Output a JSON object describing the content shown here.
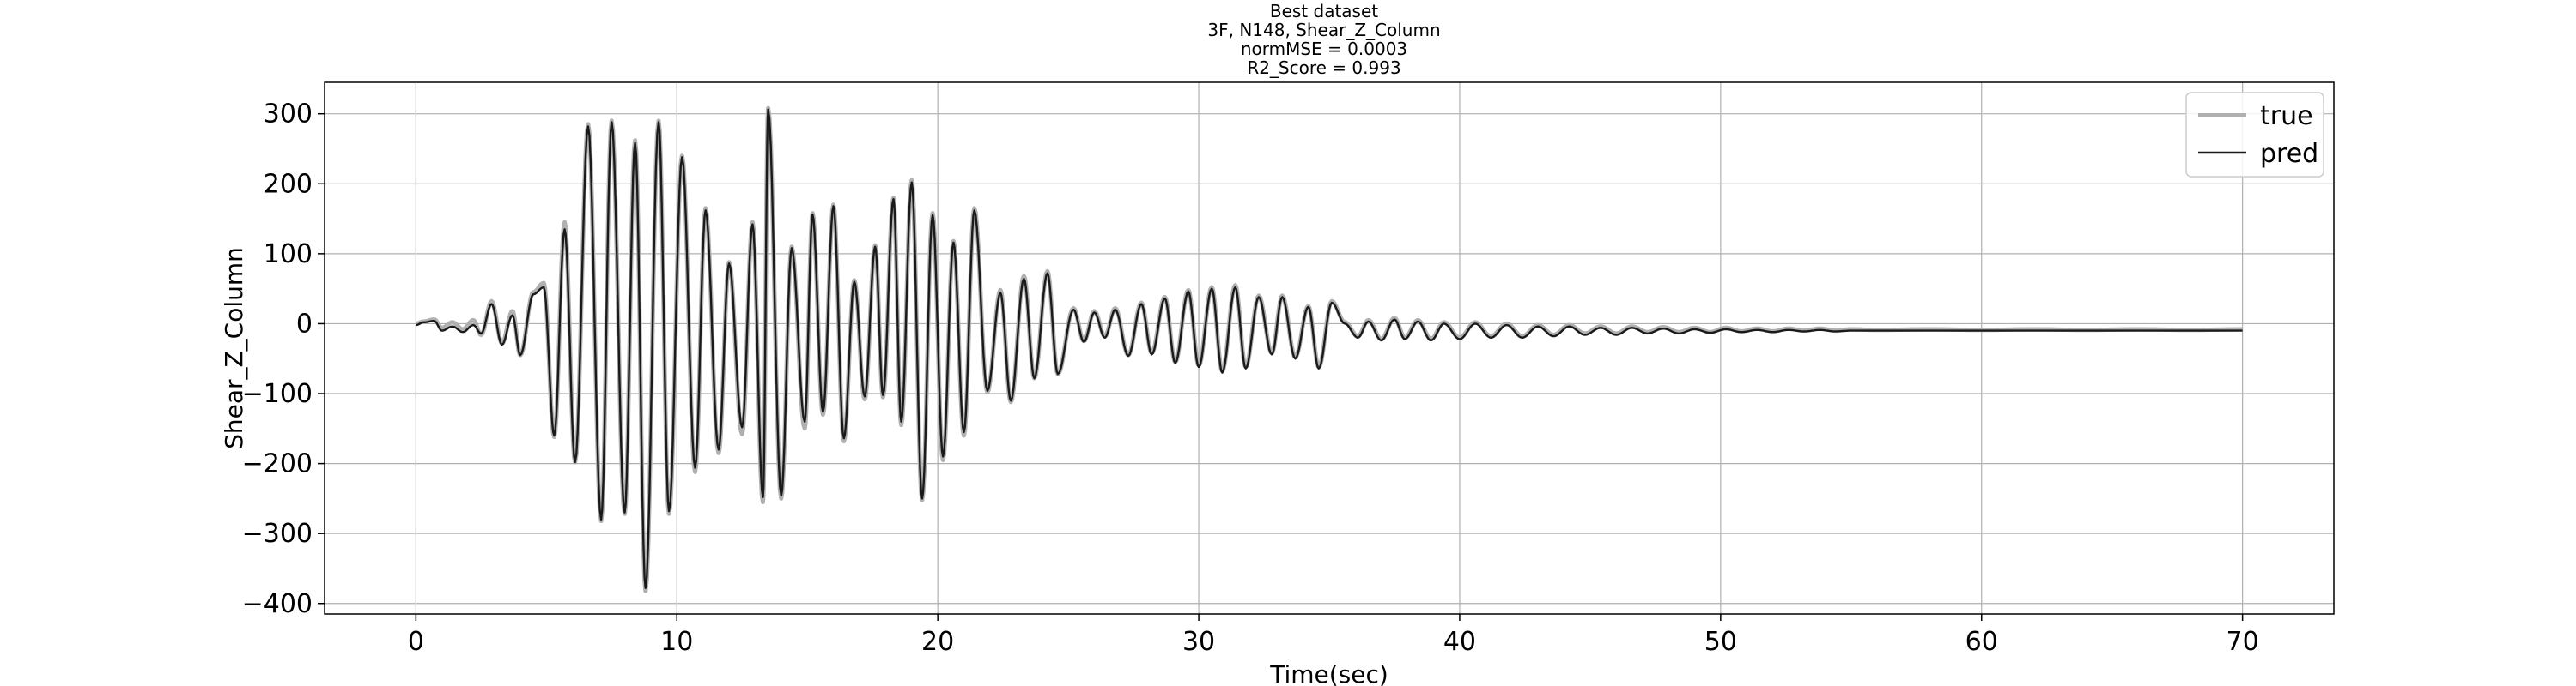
{
  "chart_data": {
    "type": "line",
    "title_lines": [
      "Best dataset",
      "3F, N148, Shear_Z_Column",
      "normMSE = 0.0003",
      "R2_Score = 0.993"
    ],
    "xlabel": "Time(sec)",
    "ylabel": "Shear_Z_Column",
    "xlim": [
      -3.5,
      73.5
    ],
    "ylim": [
      -415,
      345
    ],
    "xticks": [
      0,
      10,
      20,
      30,
      40,
      50,
      60,
      70
    ],
    "yticks": [
      -400,
      -300,
      -200,
      -100,
      0,
      100,
      200,
      300
    ],
    "ytick_labels": [
      "−400",
      "−300",
      "−200",
      "−100",
      "0",
      "100",
      "200",
      "300"
    ],
    "grid": true,
    "legend_position": "top-right",
    "series": [
      {
        "name": "true",
        "color": "#b0b0b0",
        "peaks": [
          [
            0,
            0
          ],
          [
            0.3,
            3
          ],
          [
            0.7,
            6
          ],
          [
            1.0,
            -6
          ],
          [
            1.4,
            2
          ],
          [
            1.8,
            -8
          ],
          [
            2.2,
            5
          ],
          [
            2.5,
            -16
          ],
          [
            2.9,
            32
          ],
          [
            3.3,
            -28
          ],
          [
            3.7,
            18
          ],
          [
            4.0,
            -45
          ],
          [
            4.5,
            45
          ],
          [
            4.9,
            58
          ],
          [
            5.3,
            -162
          ],
          [
            5.7,
            145
          ],
          [
            6.1,
            -198
          ],
          [
            6.6,
            285
          ],
          [
            7.1,
            -282
          ],
          [
            7.5,
            290
          ],
          [
            8.0,
            -272
          ],
          [
            8.4,
            262
          ],
          [
            8.8,
            -382
          ],
          [
            9.3,
            290
          ],
          [
            9.7,
            -272
          ],
          [
            10.2,
            240
          ],
          [
            10.7,
            -212
          ],
          [
            11.1,
            165
          ],
          [
            11.6,
            -185
          ],
          [
            12.0,
            88
          ],
          [
            12.5,
            -158
          ],
          [
            12.9,
            145
          ],
          [
            13.3,
            -255
          ],
          [
            13.5,
            308
          ],
          [
            14.0,
            -250
          ],
          [
            14.4,
            110
          ],
          [
            14.9,
            -150
          ],
          [
            15.2,
            158
          ],
          [
            15.6,
            -130
          ],
          [
            16.0,
            170
          ],
          [
            16.4,
            -168
          ],
          [
            16.8,
            62
          ],
          [
            17.2,
            -108
          ],
          [
            17.6,
            112
          ],
          [
            17.9,
            -105
          ],
          [
            18.3,
            180
          ],
          [
            18.6,
            -145
          ],
          [
            19.0,
            205
          ],
          [
            19.4,
            -252
          ],
          [
            19.8,
            158
          ],
          [
            20.2,
            -195
          ],
          [
            20.6,
            118
          ],
          [
            21.0,
            -160
          ],
          [
            21.4,
            165
          ],
          [
            21.9,
            -98
          ],
          [
            22.4,
            48
          ],
          [
            22.8,
            -112
          ],
          [
            23.3,
            68
          ],
          [
            23.7,
            -78
          ],
          [
            24.2,
            75
          ],
          [
            24.6,
            -72
          ],
          [
            25.2,
            22
          ],
          [
            25.6,
            -25
          ],
          [
            26.0,
            18
          ],
          [
            26.4,
            -18
          ],
          [
            26.8,
            22
          ],
          [
            27.3,
            -45
          ],
          [
            27.8,
            30
          ],
          [
            28.2,
            -42
          ],
          [
            28.7,
            38
          ],
          [
            29.1,
            -55
          ],
          [
            29.6,
            48
          ],
          [
            30.0,
            -60
          ],
          [
            30.5,
            52
          ],
          [
            30.9,
            -68
          ],
          [
            31.4,
            55
          ],
          [
            31.8,
            -62
          ],
          [
            32.3,
            40
          ],
          [
            32.8,
            -42
          ],
          [
            33.2,
            40
          ],
          [
            33.7,
            -48
          ],
          [
            34.2,
            25
          ],
          [
            34.6,
            -62
          ],
          [
            35.1,
            32
          ],
          [
            35.6,
            2
          ],
          [
            36.1,
            -18
          ],
          [
            36.5,
            5
          ],
          [
            37.0,
            -22
          ],
          [
            37.5,
            8
          ],
          [
            37.9,
            -20
          ],
          [
            38.4,
            5
          ],
          [
            38.9,
            -22
          ],
          [
            39.4,
            2
          ],
          [
            40.0,
            -20
          ],
          [
            40.6,
            2
          ],
          [
            41.2,
            -18
          ],
          [
            41.8,
            0
          ],
          [
            42.4,
            -18
          ],
          [
            43.0,
            -2
          ],
          [
            43.6,
            -16
          ],
          [
            44.2,
            -2
          ],
          [
            44.8,
            -14
          ],
          [
            45.4,
            -4
          ],
          [
            46.0,
            -14
          ],
          [
            46.6,
            -4
          ],
          [
            47.2,
            -12
          ],
          [
            47.8,
            -5
          ],
          [
            48.4,
            -12
          ],
          [
            49.0,
            -6
          ],
          [
            49.6,
            -12
          ],
          [
            50.2,
            -6
          ],
          [
            50.8,
            -11
          ],
          [
            51.4,
            -7
          ],
          [
            52.0,
            -11
          ],
          [
            52.6,
            -7
          ],
          [
            53.2,
            -10
          ],
          [
            53.8,
            -7
          ],
          [
            54.4,
            -10
          ],
          [
            55.0,
            -8
          ],
          [
            56.0,
            -9
          ],
          [
            58.0,
            -8
          ],
          [
            60.0,
            -9
          ],
          [
            62.0,
            -8
          ],
          [
            64.0,
            -9
          ],
          [
            66.0,
            -8
          ],
          [
            68.0,
            -9
          ],
          [
            70.0,
            -8
          ]
        ]
      },
      {
        "name": "pred",
        "color": "#1a1a1a",
        "peaks": [
          [
            0,
            -2
          ],
          [
            0.3,
            2
          ],
          [
            0.7,
            4
          ],
          [
            1.0,
            -10
          ],
          [
            1.4,
            -4
          ],
          [
            1.8,
            -12
          ],
          [
            2.2,
            -2
          ],
          [
            2.5,
            -14
          ],
          [
            2.9,
            28
          ],
          [
            3.3,
            -30
          ],
          [
            3.7,
            12
          ],
          [
            4.0,
            -45
          ],
          [
            4.5,
            42
          ],
          [
            4.9,
            52
          ],
          [
            5.3,
            -160
          ],
          [
            5.7,
            135
          ],
          [
            6.1,
            -198
          ],
          [
            6.6,
            282
          ],
          [
            7.1,
            -280
          ],
          [
            7.5,
            288
          ],
          [
            8.0,
            -270
          ],
          [
            8.4,
            258
          ],
          [
            8.8,
            -378
          ],
          [
            9.3,
            288
          ],
          [
            9.7,
            -268
          ],
          [
            10.2,
            238
          ],
          [
            10.7,
            -206
          ],
          [
            11.1,
            162
          ],
          [
            11.6,
            -180
          ],
          [
            12.0,
            86
          ],
          [
            12.5,
            -148
          ],
          [
            12.9,
            142
          ],
          [
            13.3,
            -248
          ],
          [
            13.5,
            306
          ],
          [
            14.0,
            -246
          ],
          [
            14.4,
            108
          ],
          [
            14.9,
            -140
          ],
          [
            15.2,
            156
          ],
          [
            15.6,
            -126
          ],
          [
            16.0,
            168
          ],
          [
            16.4,
            -164
          ],
          [
            16.8,
            60
          ],
          [
            17.2,
            -104
          ],
          [
            17.6,
            110
          ],
          [
            17.9,
            -102
          ],
          [
            18.3,
            178
          ],
          [
            18.6,
            -140
          ],
          [
            19.0,
            202
          ],
          [
            19.4,
            -250
          ],
          [
            19.8,
            155
          ],
          [
            20.2,
            -190
          ],
          [
            20.6,
            116
          ],
          [
            21.0,
            -155
          ],
          [
            21.4,
            162
          ],
          [
            21.9,
            -96
          ],
          [
            22.4,
            44
          ],
          [
            22.8,
            -110
          ],
          [
            23.3,
            64
          ],
          [
            23.7,
            -78
          ],
          [
            24.2,
            72
          ],
          [
            24.6,
            -72
          ],
          [
            25.2,
            20
          ],
          [
            25.6,
            -26
          ],
          [
            26.0,
            16
          ],
          [
            26.4,
            -20
          ],
          [
            26.8,
            20
          ],
          [
            27.3,
            -46
          ],
          [
            27.8,
            28
          ],
          [
            28.2,
            -44
          ],
          [
            28.7,
            36
          ],
          [
            29.1,
            -56
          ],
          [
            29.6,
            46
          ],
          [
            30.0,
            -62
          ],
          [
            30.5,
            50
          ],
          [
            30.9,
            -70
          ],
          [
            31.4,
            52
          ],
          [
            31.8,
            -64
          ],
          [
            32.3,
            38
          ],
          [
            32.8,
            -44
          ],
          [
            33.2,
            38
          ],
          [
            33.7,
            -50
          ],
          [
            34.2,
            24
          ],
          [
            34.6,
            -64
          ],
          [
            35.1,
            30
          ],
          [
            35.6,
            0
          ],
          [
            36.1,
            -20
          ],
          [
            36.5,
            3
          ],
          [
            37.0,
            -24
          ],
          [
            37.5,
            6
          ],
          [
            37.9,
            -22
          ],
          [
            38.4,
            3
          ],
          [
            38.9,
            -24
          ],
          [
            39.4,
            0
          ],
          [
            40.0,
            -22
          ],
          [
            40.6,
            0
          ],
          [
            41.2,
            -20
          ],
          [
            41.8,
            -2
          ],
          [
            42.4,
            -20
          ],
          [
            43.0,
            -4
          ],
          [
            43.6,
            -18
          ],
          [
            44.2,
            -4
          ],
          [
            44.8,
            -16
          ],
          [
            45.4,
            -6
          ],
          [
            46.0,
            -16
          ],
          [
            46.6,
            -6
          ],
          [
            47.2,
            -14
          ],
          [
            47.8,
            -7
          ],
          [
            48.4,
            -14
          ],
          [
            49.0,
            -8
          ],
          [
            49.6,
            -13
          ],
          [
            50.2,
            -8
          ],
          [
            50.8,
            -12
          ],
          [
            51.4,
            -9
          ],
          [
            52.0,
            -12
          ],
          [
            52.6,
            -9
          ],
          [
            53.2,
            -11
          ],
          [
            53.8,
            -9
          ],
          [
            54.4,
            -11
          ],
          [
            55.0,
            -10
          ],
          [
            56.0,
            -10
          ],
          [
            58.0,
            -10
          ],
          [
            60.0,
            -10
          ],
          [
            62.0,
            -10
          ],
          [
            64.0,
            -10
          ],
          [
            66.0,
            -10
          ],
          [
            68.0,
            -10
          ],
          [
            70.0,
            -10
          ]
        ]
      }
    ]
  }
}
